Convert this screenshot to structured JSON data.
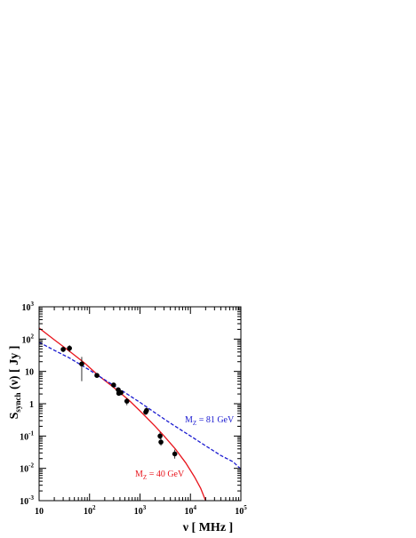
{
  "chart_data": {
    "type": "line",
    "xscale": "log",
    "yscale": "log",
    "xlim": [
      10,
      100000
    ],
    "ylim": [
      0.001,
      1000
    ],
    "xlabel": "ν [ MHz ]",
    "ylabel": {
      "main": "S",
      "sub": "synch",
      "rest": " (ν) [ Jy ]"
    },
    "x_ticks": [
      {
        "value": 10,
        "base": "10",
        "exp": ""
      },
      {
        "value": 100,
        "base": "10",
        "exp": "2"
      },
      {
        "value": 1000,
        "base": "10",
        "exp": "3"
      },
      {
        "value": 10000,
        "base": "10",
        "exp": "4"
      },
      {
        "value": 100000,
        "base": "10",
        "exp": "5"
      }
    ],
    "y_ticks": [
      {
        "value": 1000,
        "base": "10",
        "exp": "3"
      },
      {
        "value": 100,
        "base": "10",
        "exp": "2"
      },
      {
        "value": 10,
        "base": "10",
        "exp": ""
      },
      {
        "value": 1,
        "base": "1",
        "exp": ""
      },
      {
        "value": 0.1,
        "base": "10",
        "exp": "-1"
      },
      {
        "value": 0.01,
        "base": "10",
        "exp": "-2"
      },
      {
        "value": 0.001,
        "base": "10",
        "exp": "-3"
      }
    ],
    "series": [
      {
        "name": "M_Z = 40 GeV",
        "label_main": "M",
        "label_sub": "Z",
        "label_rest": " = 40 GeV",
        "color": "#e8141c",
        "dash": "solid",
        "x": [
          10,
          20,
          40,
          80,
          150,
          300,
          600,
          1000,
          2000,
          3000,
          5000,
          8000,
          12000,
          16000,
          20000
        ],
        "y": [
          220,
          95,
          42,
          18,
          7.5,
          3.2,
          1.3,
          0.6,
          0.2,
          0.1,
          0.04,
          0.015,
          0.0055,
          0.0024,
          0.001
        ]
      },
      {
        "name": "M_Z = 81 GeV",
        "label_main": "M",
        "label_sub": "Z",
        "label_rest": " = 81 GeV",
        "color": "#1a1ad0",
        "dash": "dashed",
        "x": [
          10,
          20,
          40,
          100,
          200,
          400,
          1000,
          2000,
          4000,
          10000,
          20000,
          40000,
          70000,
          100000
        ],
        "y": [
          80,
          45,
          26,
          11,
          5.5,
          2.8,
          1.1,
          0.52,
          0.25,
          0.1,
          0.05,
          0.025,
          0.016,
          0.0095
        ]
      }
    ],
    "points": {
      "x": [
        30,
        40,
        70,
        140,
        300,
        370,
        380,
        420,
        550,
        1300,
        1350,
        2500,
        2600,
        4900
      ],
      "y": [
        48,
        52,
        17,
        7.5,
        3.8,
        2.7,
        2.1,
        2.2,
        1.2,
        0.55,
        0.62,
        0.1,
        0.065,
        0.028
      ],
      "err_low": [
        40,
        40,
        5,
        7,
        3.5,
        2.4,
        1.8,
        2.0,
        0.9,
        0.45,
        0.5,
        0.08,
        0.05,
        0.02
      ],
      "err_high": [
        58,
        65,
        28,
        8.2,
        4.2,
        3.0,
        2.4,
        2.5,
        1.5,
        0.65,
        0.75,
        0.13,
        0.085,
        0.038
      ]
    }
  }
}
